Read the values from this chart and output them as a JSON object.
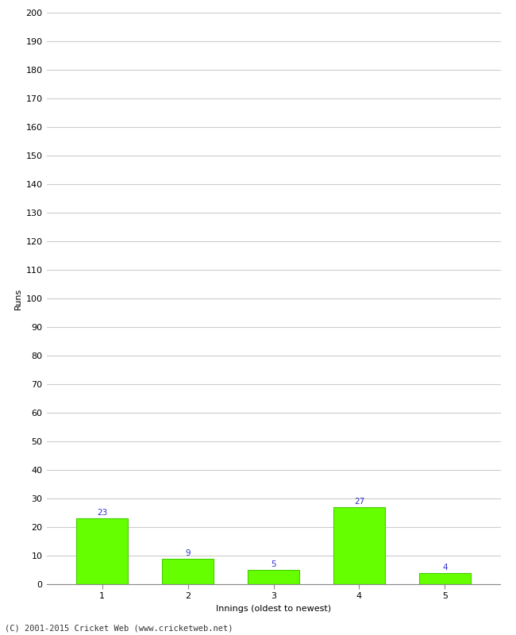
{
  "xlabel": "Innings (oldest to newest)",
  "ylabel": "Runs",
  "categories": [
    "1",
    "2",
    "3",
    "4",
    "5"
  ],
  "values": [
    23,
    9,
    5,
    27,
    4
  ],
  "bar_color": "#66ff00",
  "bar_edge_color": "#44cc00",
  "label_color": "#3333cc",
  "ylim": [
    0,
    200
  ],
  "yticks": [
    0,
    10,
    20,
    30,
    40,
    50,
    60,
    70,
    80,
    90,
    100,
    110,
    120,
    130,
    140,
    150,
    160,
    170,
    180,
    190,
    200
  ],
  "background_color": "#ffffff",
  "grid_color": "#cccccc",
  "footer": "(C) 2001-2015 Cricket Web (www.cricketweb.net)",
  "label_fontsize": 7.5,
  "axis_tick_fontsize": 8,
  "axis_label_fontsize": 8,
  "footer_fontsize": 7.5
}
